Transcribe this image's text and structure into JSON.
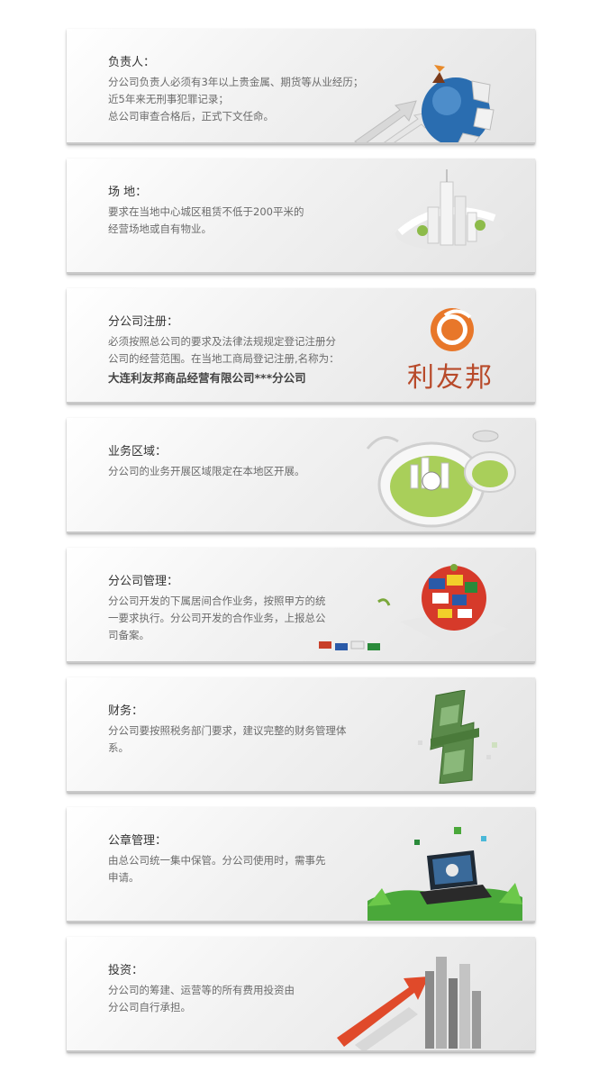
{
  "cards": [
    {
      "title": "负责人：",
      "lines": [
        "分公司负责人必须有3年以上贵金属、期货等从业经历；",
        "近5年来无刑事犯罪记录；",
        "总公司审查合格后，正式下文任命。"
      ]
    },
    {
      "title": "场 地：",
      "lines": [
        "要求在当地中心城区租赁不低于200平米的",
        "经营场地或自有物业。"
      ]
    },
    {
      "title": "分公司注册：",
      "lines": [
        "必须按照总公司的要求及法律法规规定登记注册分",
        "公司的经营范围。在当地工商局登记注册,名称为："
      ],
      "strong": "大连利友邦商品经营有限公司***分公司",
      "brand": "利友邦"
    },
    {
      "title": "业务区域：",
      "lines": [
        "分公司的业务开展区域限定在本地区开展。"
      ]
    },
    {
      "title": "分公司管理：",
      "lines": [
        "分公司开发的下属居间合作业务，按照甲方的统",
        "一要求执行。分公司开发的合作业务，上报总公",
        "司备案。"
      ]
    },
    {
      "title": "财务：",
      "lines": [
        "分公司要按照税务部门要求，建议完整的财务管理体",
        "系。"
      ]
    },
    {
      "title": "公章管理：",
      "lines": [
        "由总公司统一集中保管。分公司使用时，需事先",
        "申请。"
      ]
    },
    {
      "title": "投资：",
      "lines": [
        "分公司的筹建、运营等的所有费用投资由",
        "分公司自行承担。"
      ]
    }
  ],
  "colors": {
    "brand": "#b84a2a",
    "brand_orange": "#e8772a",
    "globe_blue": "#2a6db0",
    "money_green": "#5a8a4a",
    "arrow_red": "#e04a2a"
  }
}
